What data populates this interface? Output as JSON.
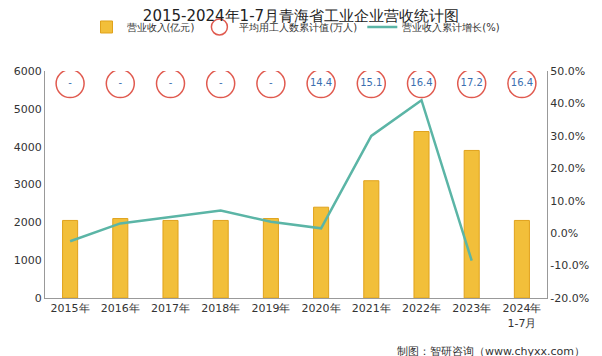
{
  "chart_data": {
    "type": "bar",
    "title": "2015-2024年1-7月青海省工业企业营收统计图",
    "source": "制图：智研咨询（www.chyxx.com）",
    "categories": [
      "2015年",
      "2016年",
      "2017年",
      "2018年",
      "2019年",
      "2020年",
      "2021年",
      "2022年",
      "2023年",
      "2024年\n1-7月"
    ],
    "series": [
      {
        "name": "营业收入(亿元)",
        "type": "bar",
        "color": "#f2bf3a",
        "values": [
          2050,
          2100,
          2050,
          2050,
          2100,
          2400,
          3100,
          4400,
          3900,
          2050
        ]
      },
      {
        "name": "平均用工人数累计值(万人)",
        "type": "scatter",
        "marker": "circle-open",
        "color": "#e05a4f",
        "values": [
          null,
          null,
          null,
          null,
          null,
          14.4,
          15.1,
          16.4,
          17.2,
          16.4
        ],
        "value_labels": [
          "-",
          "-",
          "-",
          "-",
          "-",
          "14.4",
          "15.1",
          "16.4",
          "17.2",
          "16.4"
        ]
      },
      {
        "name": "营业收入累计增长(%)",
        "type": "line",
        "axis": "y2",
        "color": "#5bb5a6",
        "values": [
          -2.5,
          3,
          5,
          7,
          3.5,
          1.5,
          30,
          41,
          -8.5,
          null
        ]
      }
    ],
    "ylim": [
      0,
      6000
    ],
    "yticks": [
      0,
      1000,
      2000,
      3000,
      4000,
      5000,
      6000
    ],
    "y2lim": [
      -20,
      50
    ],
    "y2ticks": [
      {
        "value": -20,
        "label": "-20.0%"
      },
      {
        "value": -10,
        "label": "-10.0%"
      },
      {
        "value": 0,
        "label": "0.0%"
      },
      {
        "value": 10,
        "label": "10.0%"
      },
      {
        "value": 20,
        "label": "20.0%"
      },
      {
        "value": 30,
        "label": "30.0%"
      },
      {
        "value": 40,
        "label": "40.0%"
      },
      {
        "value": 50,
        "label": "50.0%"
      }
    ],
    "legend": "top",
    "grid": false
  }
}
